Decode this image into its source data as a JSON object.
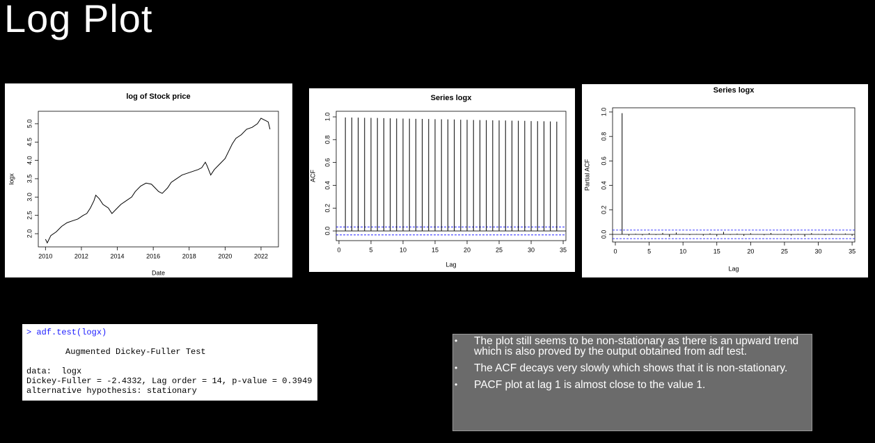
{
  "title": "Log Plot",
  "chart_data": [
    {
      "type": "line",
      "title": "log of Stock price",
      "xlabel": "Date",
      "ylabel": "logx",
      "color": "#000000",
      "x": [
        2010.0,
        2010.1,
        2010.3,
        2010.6,
        2010.9,
        2011.2,
        2011.5,
        2011.8,
        2012.1,
        2012.3,
        2012.5,
        2012.7,
        2012.8,
        2013.0,
        2013.2,
        2013.5,
        2013.7,
        2013.9,
        2014.2,
        2014.5,
        2014.8,
        2015.0,
        2015.3,
        2015.6,
        2015.9,
        2016.1,
        2016.3,
        2016.5,
        2016.8,
        2017.0,
        2017.3,
        2017.6,
        2017.9,
        2018.2,
        2018.5,
        2018.7,
        2018.9,
        2019.0,
        2019.2,
        2019.4,
        2019.7,
        2020.0,
        2020.2,
        2020.4,
        2020.6,
        2020.9,
        2021.2,
        2021.5,
        2021.8,
        2022.0,
        2022.2,
        2022.4,
        2022.5
      ],
      "values": [
        1.85,
        1.75,
        1.95,
        2.05,
        2.2,
        2.3,
        2.35,
        2.4,
        2.5,
        2.55,
        2.7,
        2.9,
        3.05,
        2.95,
        2.8,
        2.7,
        2.55,
        2.65,
        2.8,
        2.9,
        3.0,
        3.15,
        3.3,
        3.38,
        3.35,
        3.25,
        3.15,
        3.1,
        3.25,
        3.4,
        3.5,
        3.6,
        3.65,
        3.7,
        3.75,
        3.8,
        3.95,
        3.85,
        3.6,
        3.75,
        3.9,
        4.05,
        4.25,
        4.45,
        4.6,
        4.7,
        4.85,
        4.9,
        5.0,
        5.15,
        5.1,
        5.05,
        4.85
      ],
      "xlim": [
        2009.6,
        2022.97
      ],
      "xticks": [
        2010,
        2012,
        2014,
        2016,
        2018,
        2020,
        2022
      ],
      "ylim": [
        1.64,
        5.34
      ],
      "yticks": [
        {
          "value": 2,
          "label": "2.0"
        },
        2.5,
        {
          "value": 3,
          "label": "3.0"
        },
        3.5,
        {
          "value": 4,
          "label": "4.0"
        },
        4.5,
        {
          "value": 5,
          "label": "5.0"
        }
      ]
    },
    {
      "type": "bar",
      "title": "Series logx",
      "xlabel": "Lag",
      "ylabel": "ACF",
      "color": "#000000",
      "ci_color": "#0000ff",
      "x": [
        1,
        2,
        3,
        4,
        5,
        6,
        7,
        8,
        9,
        10,
        11,
        12,
        13,
        14,
        15,
        16,
        17,
        18,
        19,
        20,
        21,
        22,
        23,
        24,
        25,
        26,
        27,
        28,
        29,
        30,
        31,
        32,
        33,
        34
      ],
      "values": [
        0.995,
        0.994,
        0.993,
        0.992,
        0.991,
        0.99,
        0.989,
        0.987,
        0.986,
        0.985,
        0.984,
        0.983,
        0.982,
        0.981,
        0.98,
        0.979,
        0.978,
        0.977,
        0.975,
        0.974,
        0.973,
        0.972,
        0.971,
        0.97,
        0.969,
        0.968,
        0.967,
        0.966,
        0.965,
        0.963,
        0.962,
        0.961,
        0.96,
        0.958
      ],
      "ci": [
        -0.035,
        0.035
      ],
      "xlim": [
        -0.43,
        35.43
      ],
      "xticks": [
        0,
        5,
        10,
        15,
        20,
        25,
        30,
        35
      ],
      "ylim": [
        -0.085,
        1.049
      ],
      "yticks": [
        {
          "value": 0,
          "label": "0.0"
        },
        0.2,
        0.4,
        0.6,
        0.8,
        {
          "value": 1,
          "label": "1.0"
        }
      ]
    },
    {
      "type": "bar",
      "title": "Series  logx",
      "xlabel": "Lag",
      "ylabel": "Partial ACF",
      "color": "#000000",
      "ci_color": "#0000ff",
      "x": [
        1,
        2,
        3,
        4,
        5,
        6,
        7,
        8,
        9,
        10,
        11,
        12,
        13,
        14,
        15,
        16,
        17,
        18,
        19,
        20,
        21,
        22,
        23,
        24,
        25,
        26,
        27,
        28,
        29,
        30,
        31,
        32,
        33,
        34,
        35
      ],
      "values": [
        0.99,
        -0.01,
        0.005,
        -0.008,
        0.01,
        -0.005,
        0.012,
        -0.02,
        0.015,
        0.004,
        -0.006,
        0.003,
        -0.01,
        0.008,
        -0.015,
        0.02,
        -0.004,
        0.006,
        -0.012,
        0.009,
        0.002,
        -0.007,
        0.011,
        -0.003,
        0.005,
        -0.009,
        0.004,
        -0.018,
        0.01,
        0.003,
        -0.006,
        0.008,
        -0.002,
        0.007,
        -0.011
      ],
      "ci": [
        -0.035,
        0.035
      ],
      "xlim": [
        -0.41,
        35.4
      ],
      "xticks": [
        0,
        5,
        10,
        15,
        20,
        25,
        30,
        35
      ],
      "ylim": [
        -0.0625,
        1.034
      ],
      "yticks": [
        {
          "value": 0,
          "label": "0.0"
        },
        0.2,
        0.4,
        0.6,
        0.8,
        {
          "value": 1,
          "label": "1.0"
        }
      ]
    }
  ],
  "console": {
    "command": "> adf.test(logx)",
    "heading": "Augmented Dickey-Fuller Test",
    "data_line": "data:  logx",
    "result": "Dickey-Fuller = -2.4332, Lag order = 14, p-value = 0.3949",
    "alternative": "alternative hypothesis: stationary"
  },
  "notes": [
    "The plot still seems to be non-stationary as there is an upward trend which is also proved by the output obtained from adf test.",
    "The ACF decays very slowly which shows that it is non-stationary.",
    "PACF plot at lag 1 is almost close to the value 1."
  ]
}
